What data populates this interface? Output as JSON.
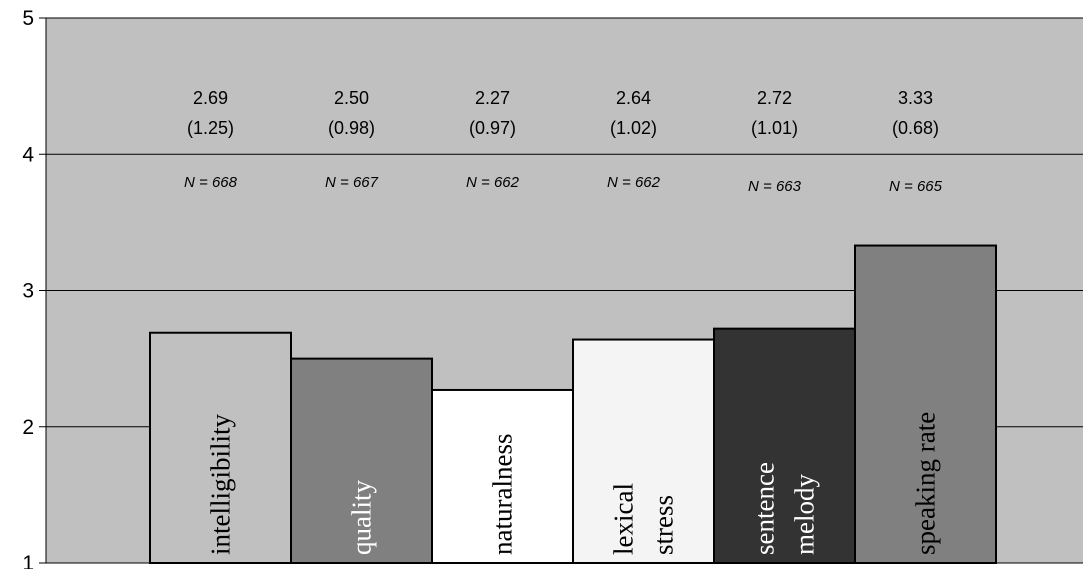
{
  "chart_data": {
    "type": "bar",
    "categories": [
      "intelligibility",
      "quality",
      "naturalness",
      "lexical stress",
      "sentence melody",
      "speaking rate"
    ],
    "bar_label_lines": [
      [
        "intelligibility"
      ],
      [
        "quality"
      ],
      [
        "naturalness"
      ],
      [
        "lexical",
        "stress"
      ],
      [
        "sentence",
        "melody"
      ],
      [
        "speaking rate"
      ]
    ],
    "values": [
      2.69,
      2.5,
      2.27,
      2.64,
      2.72,
      3.33
    ],
    "value_labels": [
      "2.69",
      "2.50",
      "2.27",
      "2.64",
      "2.72",
      "3.33"
    ],
    "sd_labels": [
      "(1.25)",
      "(0.98)",
      "(0.97)",
      "(1.02)",
      "(1.01)",
      "(0.68)"
    ],
    "n_labels": [
      "N = 668",
      "N = 667",
      "N = 662",
      "N = 662",
      "N = 663",
      "N = 665"
    ],
    "bar_colors": [
      "#c0c0c0",
      "#808080",
      "#ffffff",
      "#f4f4f4",
      "#333333",
      "#808080"
    ],
    "bar_text_colors": [
      "#000000",
      "#ffffff",
      "#000000",
      "#000000",
      "#ffffff",
      "#000000"
    ],
    "yticks": [
      "1",
      "2",
      "3",
      "4",
      "5"
    ],
    "ylim": [
      1,
      5
    ],
    "grid": true,
    "title": "",
    "xlabel": "",
    "ylabel": ""
  },
  "colors": {
    "plot_background": "#c0c0c0",
    "gridline": "#000000",
    "bar_outline": "#000000"
  }
}
